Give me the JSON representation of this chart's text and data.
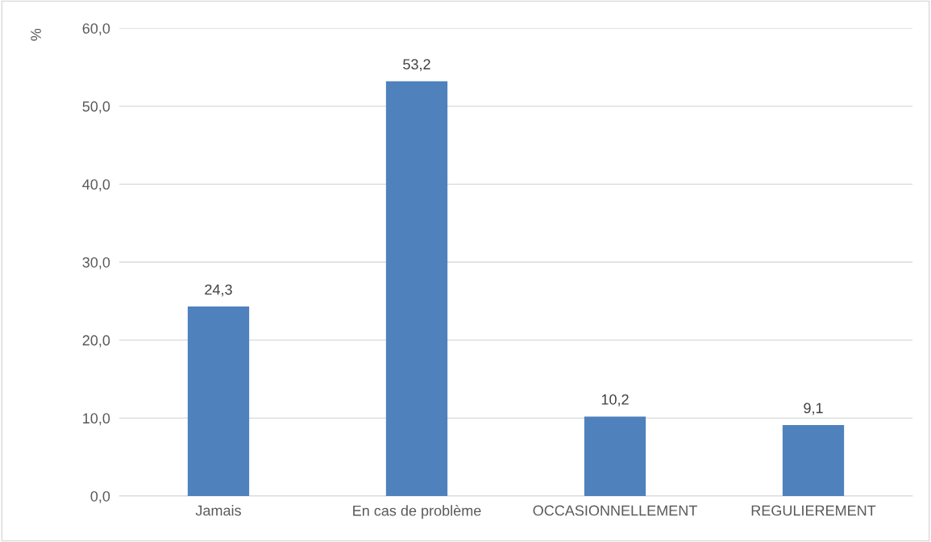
{
  "chart_data": {
    "type": "bar",
    "ylabel": "%",
    "categories": [
      "Jamais",
      "En cas de problème",
      "OCCASIONNELLEMENT",
      "REGULIEREMENT"
    ],
    "values": [
      24.3,
      53.2,
      10.2,
      9.1
    ],
    "value_labels": [
      "24,3",
      "53,2",
      "10,2",
      "9,1"
    ],
    "color": "#4f81bd",
    "ylim": [
      0,
      60
    ],
    "yticks": [
      {
        "value": 0,
        "label": "0,0"
      },
      {
        "value": 10,
        "label": "10,0"
      },
      {
        "value": 20,
        "label": "20,0"
      },
      {
        "value": 30,
        "label": "30,0"
      },
      {
        "value": 40,
        "label": "40,0"
      },
      {
        "value": 50,
        "label": "50,0"
      },
      {
        "value": 60,
        "label": "60,0"
      }
    ],
    "grid": "y",
    "legend": false
  }
}
